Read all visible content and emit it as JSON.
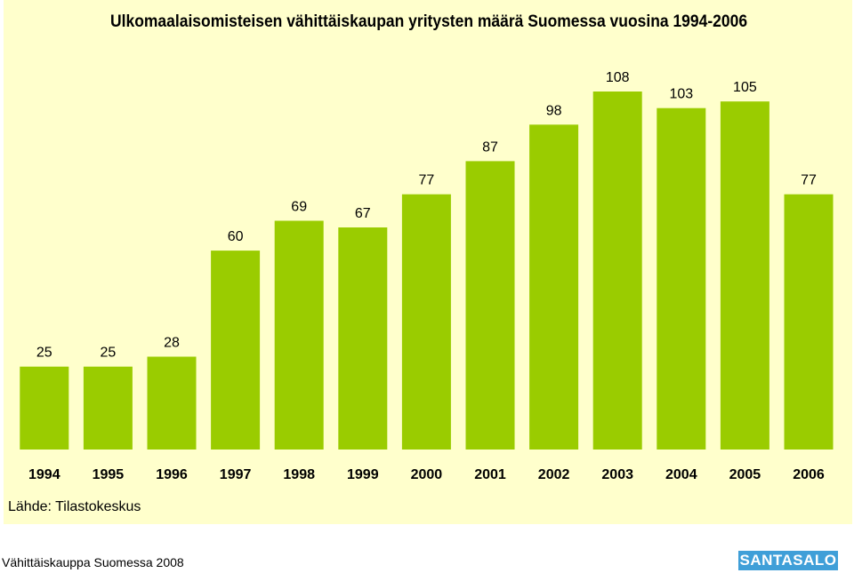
{
  "chart_data": {
    "type": "bar",
    "title": "Ulkomaalaisomisteisen vähittäiskaupan yritysten määrä Suomessa vuosina 1994-2006",
    "categories": [
      "1994",
      "1995",
      "1996",
      "1997",
      "1998",
      "1999",
      "2000",
      "2001",
      "2002",
      "2003",
      "2004",
      "2005",
      "2006"
    ],
    "values": [
      25,
      25,
      28,
      60,
      69,
      67,
      77,
      87,
      98,
      108,
      103,
      105,
      77
    ],
    "xlabel": "",
    "ylabel": "",
    "ylim": [
      0,
      120
    ],
    "grid": false,
    "bar_color": "#9acc00",
    "data_labels": true
  },
  "source_note": "Lähde: Tilastokeskus",
  "footer": "Vähittäiskauppa Suomessa 2008",
  "logo_text": "SANTASALO"
}
